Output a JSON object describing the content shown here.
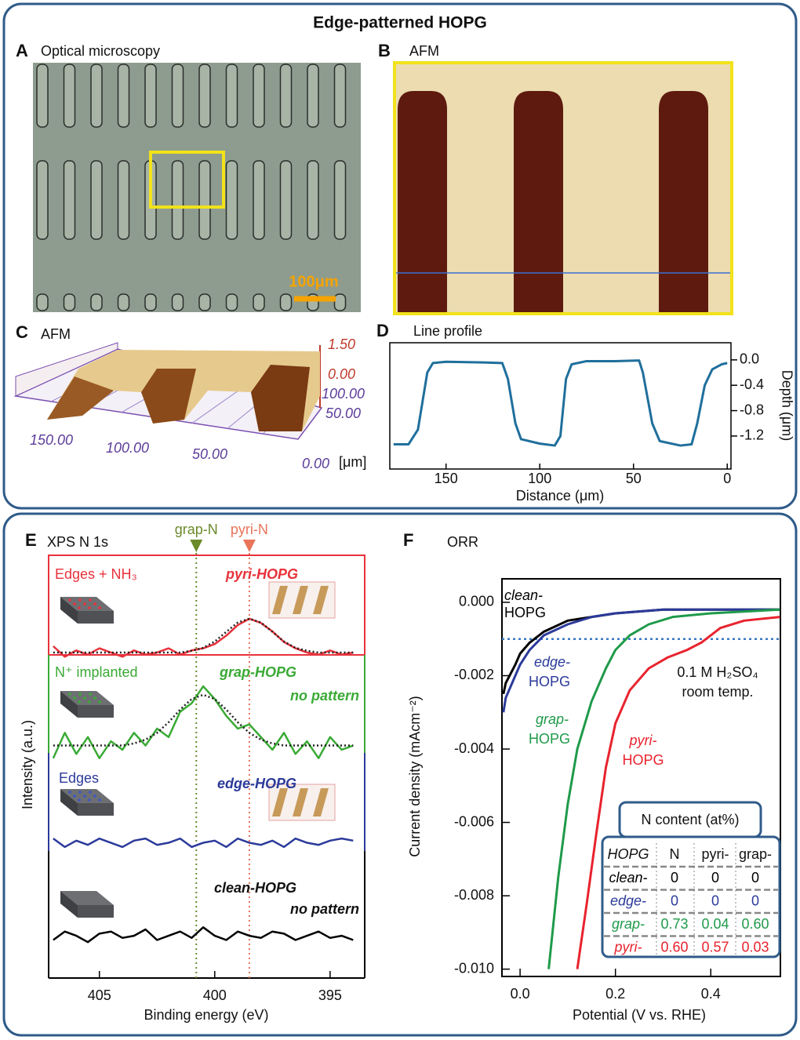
{
  "figure": {
    "title": "Edge-patterned HOPG"
  },
  "panels": {
    "A": {
      "letter": "A",
      "title": "Optical microscopy",
      "scale_bar": "100μm"
    },
    "B": {
      "letter": "B",
      "title": "AFM"
    },
    "C": {
      "letter": "C",
      "title": "AFM",
      "z_labels": [
        "1.50",
        "0.00"
      ],
      "y_labels": [
        "100.00",
        "50.00"
      ],
      "x_labels": [
        "150.00",
        "100.00",
        "50.00",
        "0.00"
      ],
      "unit": "[μm]"
    }
  },
  "chart_data": [
    {
      "type": "line",
      "letter": "D",
      "title": "Line profile",
      "xlabel": "Distance (μm)",
      "ylabel": "Depth (μm)",
      "xlim": [
        180,
        -2
      ],
      "xticks": [
        150,
        100,
        50,
        0
      ],
      "ylim": [
        -1.72,
        0.27
      ],
      "yticks": [
        {
          "value": 0,
          "label": "0.0"
        },
        -0.4,
        -0.8,
        -1.2
      ],
      "series": [
        {
          "color": "#1f6f9c",
          "x": [
            178,
            170,
            165,
            160,
            157,
            150,
            130,
            120,
            117,
            113,
            110,
            100,
            92,
            89,
            86,
            83,
            75,
            60,
            47,
            45,
            40,
            36,
            25,
            19,
            16,
            12,
            8,
            3,
            0
          ],
          "values": [
            -1.33,
            -1.33,
            -1.1,
            -0.2,
            -0.05,
            -0.03,
            -0.04,
            -0.05,
            -0.3,
            -1.0,
            -1.25,
            -1.32,
            -1.35,
            -1.2,
            -0.3,
            -0.07,
            -0.02,
            -0.02,
            -0.01,
            -0.2,
            -1.0,
            -1.28,
            -1.35,
            -1.33,
            -1.0,
            -0.4,
            -0.15,
            -0.07,
            -0.05
          ]
        }
      ]
    },
    {
      "type": "line",
      "letter": "E",
      "title": "XPS N 1s",
      "xlabel": "Binding energy (eV)",
      "ylabel": "Intensity (a.u.)",
      "xlim": [
        407.2,
        393.5
      ],
      "xticks": [
        405,
        400,
        395
      ],
      "ylim": [
        0,
        100
      ],
      "x": [
        407,
        406.5,
        406,
        405.5,
        405,
        404.5,
        404,
        403.5,
        403,
        402.5,
        402,
        401.5,
        401,
        400.5,
        400,
        399.5,
        399,
        398.5,
        398,
        397.5,
        397,
        396.5,
        396,
        395.5,
        395,
        394.5,
        394
      ],
      "series": [
        {
          "color": "#e8323c",
          "values": [
            78.5,
            76,
            77.5,
            76.5,
            78,
            77,
            76,
            77.5,
            76.5,
            77,
            78,
            76.5,
            77.5,
            78,
            79,
            81,
            83.5,
            85,
            84,
            82,
            79.5,
            78,
            77,
            76.5,
            77.5,
            76.5,
            77
          ]
        },
        {
          "color": "#222222",
          "style": "dotted",
          "values": [
            77,
            77,
            77,
            77,
            77,
            77,
            77,
            77,
            77,
            77,
            77,
            77,
            77.4,
            78.1,
            79.6,
            81.9,
            84.1,
            85,
            84.1,
            81.9,
            79.6,
            78.1,
            77.4,
            77,
            77,
            77,
            77
          ]
        },
        {
          "color": "#3aaa35",
          "values": [
            52,
            58,
            53,
            57,
            52,
            56,
            54,
            58,
            55,
            59,
            57,
            63,
            65,
            69,
            66,
            62,
            59,
            60,
            57,
            54,
            58,
            53,
            56,
            52,
            57,
            54,
            55
          ]
        },
        {
          "color": "#222222",
          "style": "dotted",
          "values": [
            55,
            55,
            55,
            55,
            55,
            55,
            55,
            55.5,
            56.4,
            58,
            60.5,
            63.5,
            66,
            67,
            66,
            63.5,
            60.5,
            58,
            56.4,
            55.5,
            55,
            55,
            55,
            55,
            55,
            55,
            55
          ]
        },
        {
          "color": "#2b3a9a",
          "values": [
            33,
            31,
            32.5,
            31.5,
            33,
            32,
            31,
            32.5,
            33,
            31.5,
            32,
            33,
            31,
            32,
            32.5,
            31,
            33,
            32,
            31.5,
            32.5,
            31,
            33,
            32,
            31.5,
            32.5,
            33,
            32.5
          ]
        },
        {
          "color": "#000000",
          "values": [
            9,
            11,
            10,
            8.5,
            10.5,
            11,
            9.5,
            10,
            11.5,
            9,
            10,
            11,
            9.5,
            12,
            10,
            9,
            11,
            10,
            9.5,
            11,
            10.5,
            9,
            10,
            11,
            9.5,
            10,
            9
          ]
        }
      ],
      "vlines": [
        {
          "x": 400.8,
          "label": "grap-N",
          "color": "#6b8a2a"
        },
        {
          "x": 398.5,
          "label": "pyri-N",
          "color": "#e8745a"
        }
      ],
      "annotations": [
        "Edges + NH₃",
        "pyri-HOPG",
        "N⁺ implanted",
        "grap-HOPG",
        "no pattern",
        "Edges",
        "edge-HOPG",
        "clean-HOPG",
        "no pattern"
      ]
    },
    {
      "type": "line",
      "letter": "F",
      "title": "ORR",
      "xlabel": "Potential (V vs. RHE)",
      "ylabel": "Current density (mAcm⁻²)",
      "xlim": [
        -0.038,
        0.546
      ],
      "xticks": [
        {
          "value": 0,
          "label": "0.0"
        },
        0.2,
        0.4
      ],
      "ylim": [
        -0.0102,
        0.00064
      ],
      "yticks": [
        {
          "value": 0,
          "label": "0.000"
        },
        -0.002,
        -0.004,
        -0.006,
        -0.008,
        {
          "value": -0.01,
          "label": "-0.010"
        }
      ],
      "hline": -0.001,
      "series": [
        {
          "label": [
            "clean-",
            "HOPG"
          ],
          "color": "#000000",
          "x": [
            -0.035,
            -0.03,
            -0.01,
            0,
            0.02,
            0.05,
            0.1,
            0.15,
            0.2,
            0.3,
            0.4,
            0.545
          ],
          "values": [
            -0.0025,
            -0.0022,
            -0.0017,
            -0.0014,
            -0.0011,
            -0.0008,
            -0.0005,
            -0.0004,
            -0.0003,
            -0.0002,
            -0.0002,
            -0.0002
          ]
        },
        {
          "label": [
            "edge-",
            "HOPG"
          ],
          "color": "#2b3a9a",
          "x": [
            -0.035,
            -0.03,
            -0.01,
            0,
            0.02,
            0.05,
            0.1,
            0.15,
            0.2,
            0.3,
            0.4,
            0.545
          ],
          "values": [
            -0.003,
            -0.0026,
            -0.002,
            -0.0017,
            -0.0013,
            -0.0009,
            -0.0006,
            -0.0004,
            -0.0003,
            -0.0002,
            -0.0002,
            -0.0002
          ]
        },
        {
          "label": [
            "grap-",
            "HOPG"
          ],
          "color": "#1f9a4a",
          "x": [
            0.06,
            0.08,
            0.1,
            0.12,
            0.15,
            0.18,
            0.2,
            0.23,
            0.27,
            0.32,
            0.4,
            0.545
          ],
          "values": [
            -0.01,
            -0.0075,
            -0.0055,
            -0.004,
            -0.0027,
            -0.0018,
            -0.0013,
            -0.0009,
            -0.0006,
            -0.0004,
            -0.0003,
            -0.0002
          ]
        },
        {
          "label": [
            "pyri-",
            "HOPG"
          ],
          "color": "#e8232e",
          "x": [
            0.12,
            0.14,
            0.16,
            0.18,
            0.2,
            0.23,
            0.27,
            0.31,
            0.35,
            0.38,
            0.42,
            0.47,
            0.545
          ],
          "values": [
            -0.01,
            -0.0082,
            -0.0063,
            -0.0045,
            -0.0033,
            -0.0024,
            -0.0018,
            -0.0015,
            -0.0013,
            -0.0011,
            -0.0007,
            -0.0005,
            -0.0004
          ]
        }
      ],
      "annotations": [
        "0.1 M H₂SO₄",
        "room temp."
      ],
      "table": {
        "title": "N content (at%)",
        "header": [
          "HOPG",
          "N",
          "pyri-",
          "grap-"
        ],
        "rows": [
          [
            "clean-",
            "0",
            "0",
            "0"
          ],
          [
            "edge-",
            "0",
            "0",
            "0"
          ],
          [
            "grap-",
            "0.73",
            "0.04",
            "0.60"
          ],
          [
            "pyri-",
            "0.60",
            "0.57",
            "0.03"
          ]
        ]
      }
    }
  ]
}
